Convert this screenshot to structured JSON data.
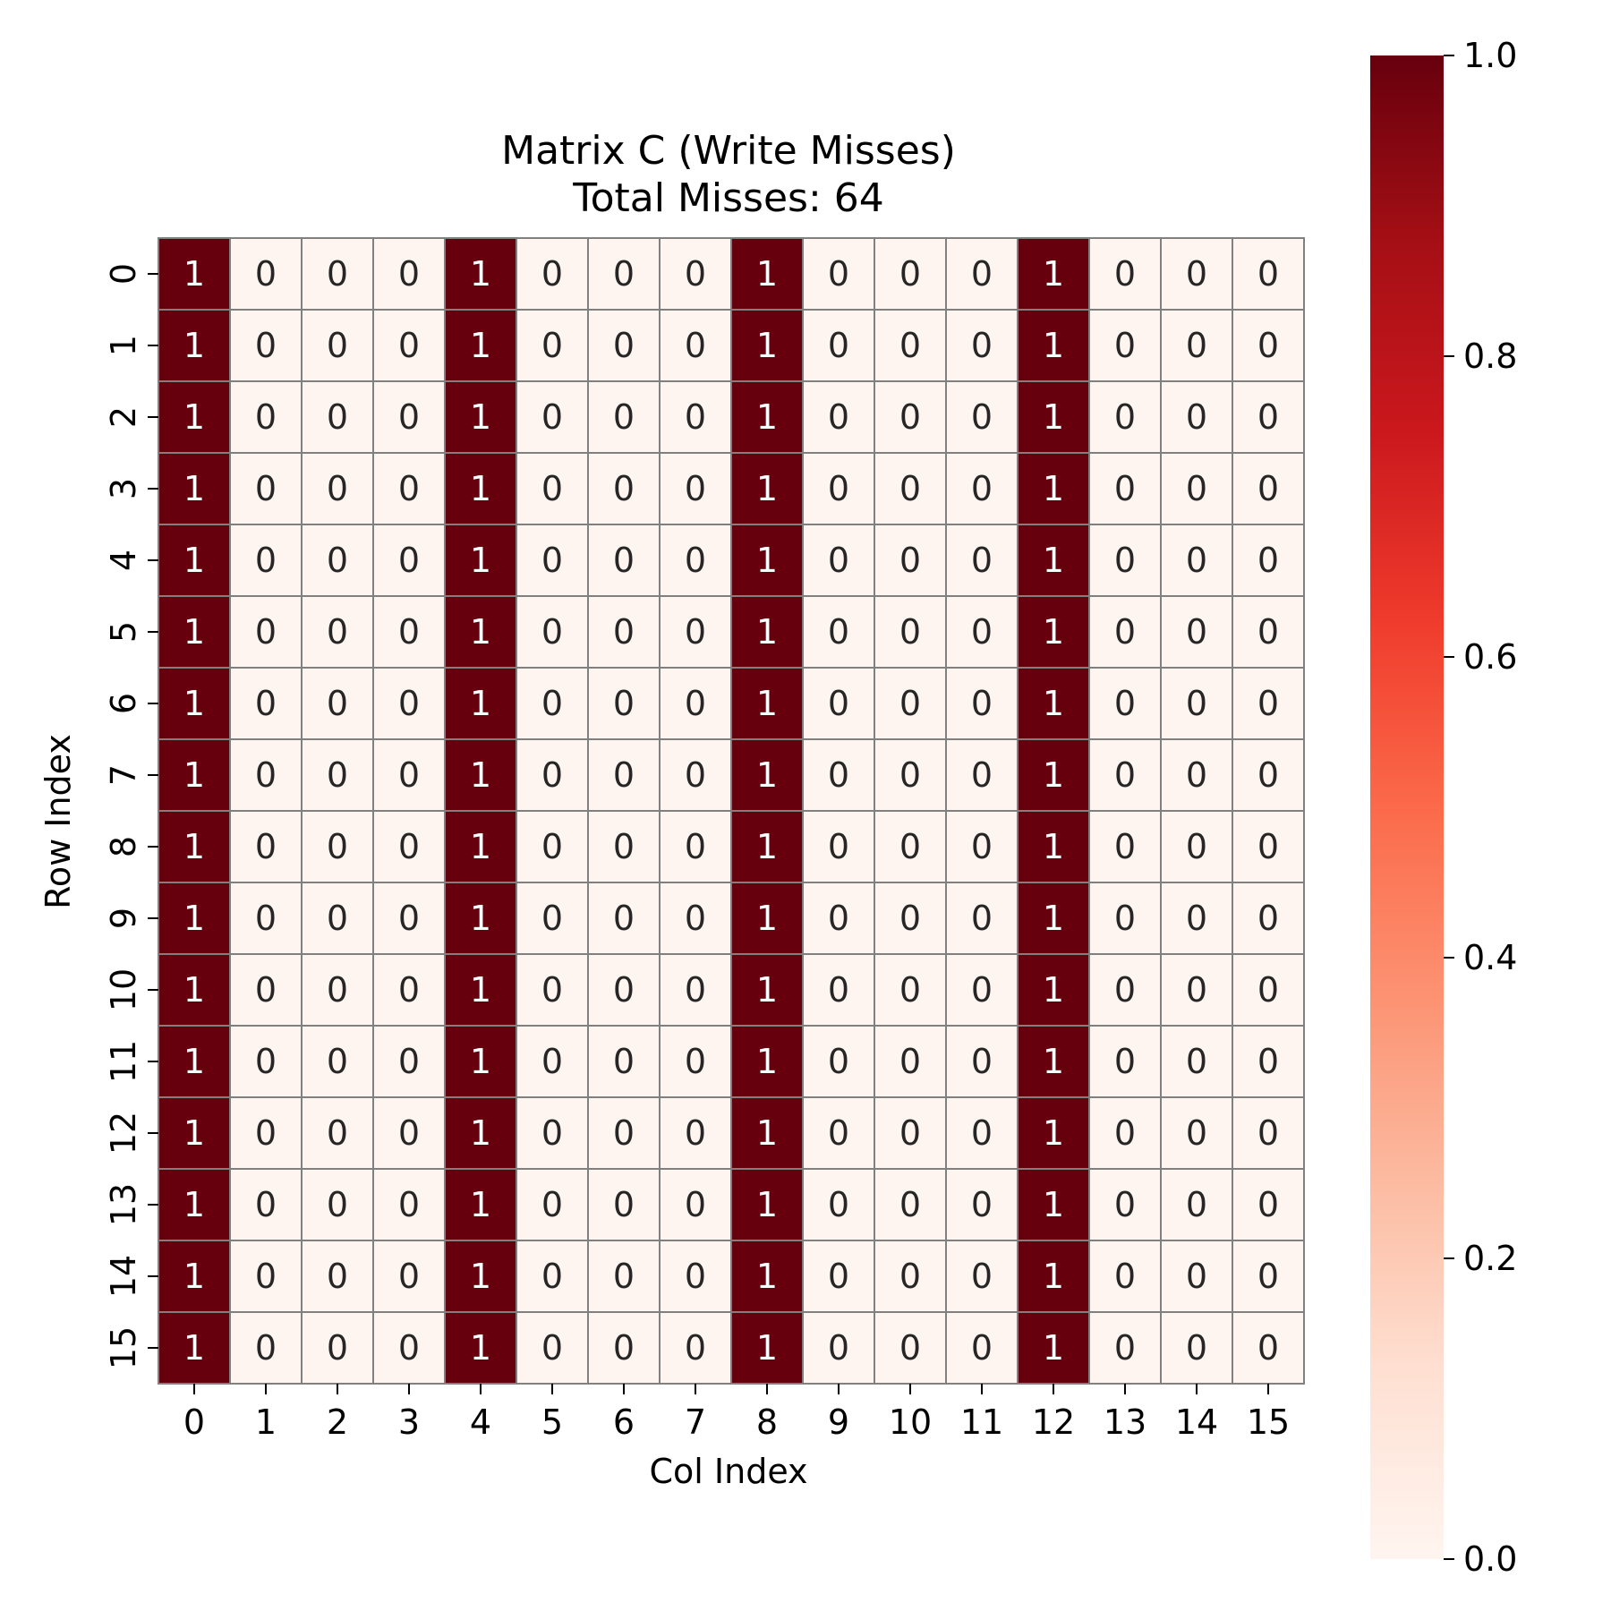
{
  "chart_data": {
    "type": "heatmap",
    "title": "Matrix C (Write Misses)",
    "subtitle": "Total Misses: 64",
    "xlabel": "Col Index",
    "ylabel": "Row Index",
    "x_categories": [
      "0",
      "1",
      "2",
      "3",
      "4",
      "5",
      "6",
      "7",
      "8",
      "9",
      "10",
      "11",
      "12",
      "13",
      "14",
      "15"
    ],
    "y_categories": [
      "0",
      "1",
      "2",
      "3",
      "4",
      "5",
      "6",
      "7",
      "8",
      "9",
      "10",
      "11",
      "12",
      "13",
      "14",
      "15"
    ],
    "values": [
      [
        1,
        0,
        0,
        0,
        1,
        0,
        0,
        0,
        1,
        0,
        0,
        0,
        1,
        0,
        0,
        0
      ],
      [
        1,
        0,
        0,
        0,
        1,
        0,
        0,
        0,
        1,
        0,
        0,
        0,
        1,
        0,
        0,
        0
      ],
      [
        1,
        0,
        0,
        0,
        1,
        0,
        0,
        0,
        1,
        0,
        0,
        0,
        1,
        0,
        0,
        0
      ],
      [
        1,
        0,
        0,
        0,
        1,
        0,
        0,
        0,
        1,
        0,
        0,
        0,
        1,
        0,
        0,
        0
      ],
      [
        1,
        0,
        0,
        0,
        1,
        0,
        0,
        0,
        1,
        0,
        0,
        0,
        1,
        0,
        0,
        0
      ],
      [
        1,
        0,
        0,
        0,
        1,
        0,
        0,
        0,
        1,
        0,
        0,
        0,
        1,
        0,
        0,
        0
      ],
      [
        1,
        0,
        0,
        0,
        1,
        0,
        0,
        0,
        1,
        0,
        0,
        0,
        1,
        0,
        0,
        0
      ],
      [
        1,
        0,
        0,
        0,
        1,
        0,
        0,
        0,
        1,
        0,
        0,
        0,
        1,
        0,
        0,
        0
      ],
      [
        1,
        0,
        0,
        0,
        1,
        0,
        0,
        0,
        1,
        0,
        0,
        0,
        1,
        0,
        0,
        0
      ],
      [
        1,
        0,
        0,
        0,
        1,
        0,
        0,
        0,
        1,
        0,
        0,
        0,
        1,
        0,
        0,
        0
      ],
      [
        1,
        0,
        0,
        0,
        1,
        0,
        0,
        0,
        1,
        0,
        0,
        0,
        1,
        0,
        0,
        0
      ],
      [
        1,
        0,
        0,
        0,
        1,
        0,
        0,
        0,
        1,
        0,
        0,
        0,
        1,
        0,
        0,
        0
      ],
      [
        1,
        0,
        0,
        0,
        1,
        0,
        0,
        0,
        1,
        0,
        0,
        0,
        1,
        0,
        0,
        0
      ],
      [
        1,
        0,
        0,
        0,
        1,
        0,
        0,
        0,
        1,
        0,
        0,
        0,
        1,
        0,
        0,
        0
      ],
      [
        1,
        0,
        0,
        0,
        1,
        0,
        0,
        0,
        1,
        0,
        0,
        0,
        1,
        0,
        0,
        0
      ],
      [
        1,
        0,
        0,
        0,
        1,
        0,
        0,
        0,
        1,
        0,
        0,
        0,
        1,
        0,
        0,
        0
      ]
    ],
    "colormap": "Reds",
    "color_range": [
      0.0,
      1.0
    ],
    "colorbar_ticks": [
      "0.0",
      "0.2",
      "0.4",
      "0.6",
      "0.8",
      "1.0"
    ],
    "cell_border_color": "#808080",
    "annotate": true
  }
}
